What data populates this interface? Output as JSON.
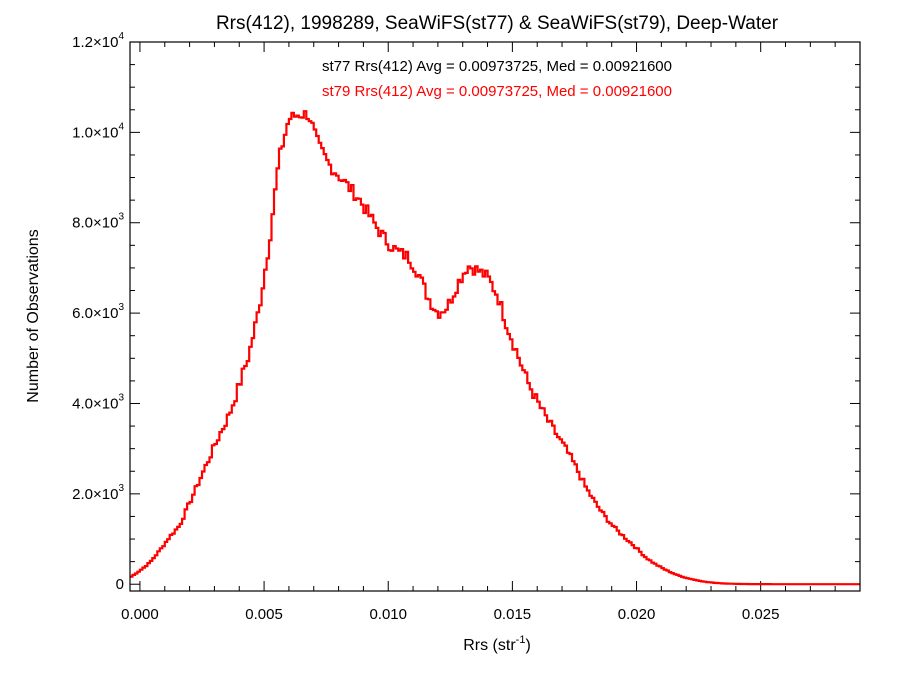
{
  "chart_data": {
    "type": "line",
    "style": "histogram-step",
    "title": "Rrs(412), 1998289, SeaWiFS(st77) & SeaWiFS(st79), Deep-Water",
    "xlabel": "Rrs (str",
    "xlabel_superscript": "-1",
    "xlabel_suffix": ")",
    "ylabel": "Number of Observations",
    "xlim": [
      -0.0004,
      0.029
    ],
    "ylim": [
      -150,
      12000
    ],
    "x_ticks": [
      {
        "value": 0.0,
        "label": "0.000"
      },
      {
        "value": 0.005,
        "label": "0.005"
      },
      {
        "value": 0.01,
        "label": "0.010"
      },
      {
        "value": 0.015,
        "label": "0.015"
      },
      {
        "value": 0.02,
        "label": "0.020"
      },
      {
        "value": 0.025,
        "label": "0.025"
      }
    ],
    "y_ticks": [
      {
        "value": 0,
        "mantissa": "0",
        "exponent": ""
      },
      {
        "value": 2000,
        "mantissa": "2.0×10",
        "exponent": "3"
      },
      {
        "value": 4000,
        "mantissa": "4.0×10",
        "exponent": "3"
      },
      {
        "value": 6000,
        "mantissa": "6.0×10",
        "exponent": "3"
      },
      {
        "value": 8000,
        "mantissa": "8.0×10",
        "exponent": "3"
      },
      {
        "value": 10000,
        "mantissa": "1.0×10",
        "exponent": "4"
      },
      {
        "value": 12000,
        "mantissa": "1.2×10",
        "exponent": "4"
      }
    ],
    "x_minor_step": 0.001,
    "y_minor_step": 500,
    "annotations": [
      {
        "text": "st77 Rrs(412) Avg = 0.00973725, Med = 0.00921600",
        "color": "#000000"
      },
      {
        "text": "st79 Rrs(412) Avg = 0.00973725, Med = 0.00921600",
        "color": "#ff0000"
      }
    ],
    "series": [
      {
        "color": "#ff0000",
        "x": [
          -0.0004,
          0.0,
          0.0004,
          0.0008,
          0.0012,
          0.0016,
          0.002,
          0.0024,
          0.0028,
          0.0032,
          0.0036,
          0.004,
          0.0044,
          0.0048,
          0.0052,
          0.0056,
          0.006,
          0.0064,
          0.0068,
          0.0072,
          0.0076,
          0.008,
          0.0084,
          0.0088,
          0.0092,
          0.0096,
          0.01,
          0.0104,
          0.0108,
          0.0112,
          0.0116,
          0.012,
          0.0124,
          0.0128,
          0.0132,
          0.0136,
          0.014,
          0.0144,
          0.0148,
          0.0152,
          0.0156,
          0.016,
          0.0164,
          0.0168,
          0.0172,
          0.0176,
          0.018,
          0.0184,
          0.0188,
          0.0192,
          0.0196,
          0.02,
          0.0204,
          0.0208,
          0.0212,
          0.0216,
          0.022,
          0.0224,
          0.0228,
          0.0232,
          0.0236,
          0.024,
          0.0244,
          0.025,
          0.026,
          0.027,
          0.028,
          0.029
        ],
        "y": [
          150,
          300,
          480,
          750,
          1050,
          1300,
          1800,
          2300,
          2800,
          3300,
          3750,
          4400,
          5100,
          6100,
          7500,
          9400,
          10300,
          10400,
          10400,
          9700,
          9300,
          9050,
          8800,
          8550,
          8200,
          7850,
          7550,
          7350,
          7250,
          6900,
          6350,
          6000,
          6150,
          6650,
          7050,
          6950,
          6800,
          6400,
          5700,
          5100,
          4500,
          4050,
          3650,
          3300,
          2950,
          2550,
          2100,
          1750,
          1450,
          1200,
          1000,
          800,
          580,
          430,
          310,
          210,
          140,
          90,
          50,
          28,
          14,
          8,
          4,
          2,
          1,
          0,
          0,
          0
        ]
      }
    ]
  }
}
